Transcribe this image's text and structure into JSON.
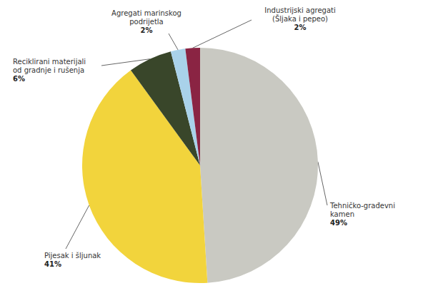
{
  "chart_data": {
    "type": "pie",
    "categories": [
      "Tehničko-građevni kamen",
      "Pijesak i šljunak",
      "Reciklirani materijali od gradnje i rušenja",
      "Agregati marinskog podrijetla",
      "Industrijski agregati (Šljaka i pepeo)"
    ],
    "values": [
      49,
      41,
      6,
      2,
      2
    ],
    "value_labels": [
      "49%",
      "41%",
      "6%",
      "2%",
      "2%"
    ],
    "colors": [
      "#c9c9c2",
      "#f2d43c",
      "#39462a",
      "#a9d2ea",
      "#8a2443"
    ],
    "data_labels": true
  }
}
